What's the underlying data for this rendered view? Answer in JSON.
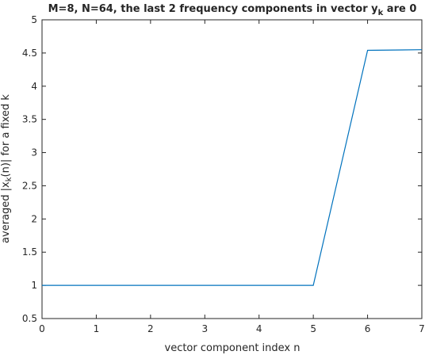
{
  "chart_data": {
    "type": "line",
    "title": {
      "before_sub": "M=8, N=64, the last 2 frequency components in vector y",
      "sub": "k",
      "after_sub": " are 0"
    },
    "xlabel": "vector component index n",
    "ylabel": {
      "before_sub": "averaged |x",
      "sub": "k",
      "after_sub": "(n)| for a fixed k"
    },
    "xlim": [
      0,
      7
    ],
    "ylim": [
      0.5,
      5
    ],
    "xticks": [
      0,
      1,
      2,
      3,
      4,
      5,
      6,
      7
    ],
    "xtick_labels": [
      "0",
      "1",
      "2",
      "3",
      "4",
      "5",
      "6",
      "7"
    ],
    "yticks": [
      0.5,
      1,
      1.5,
      2,
      2.5,
      3,
      3.5,
      4,
      4.5,
      5
    ],
    "ytick_labels": [
      "0.5",
      "1",
      "1.5",
      "2",
      "2.5",
      "3",
      "3.5",
      "4",
      "4.5",
      "5"
    ],
    "grid": false,
    "series": [
      {
        "color": "#0072bd",
        "x": [
          0,
          1,
          2,
          3,
          4,
          5,
          6,
          7
        ],
        "y": [
          1.0,
          1.0,
          1.0,
          1.0,
          1.0,
          1.0,
          4.54,
          4.55
        ]
      }
    ]
  }
}
